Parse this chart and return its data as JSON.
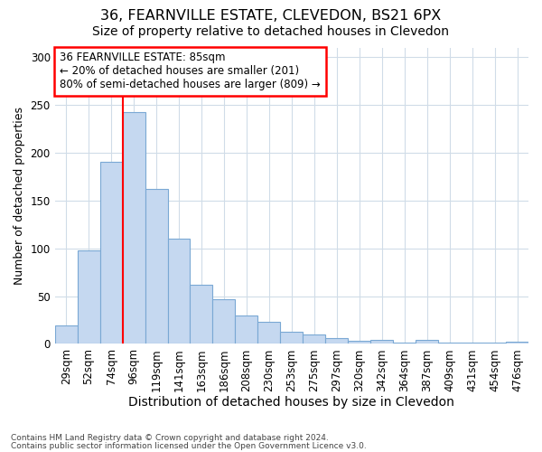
{
  "title": "36, FEARNVILLE ESTATE, CLEVEDON, BS21 6PX",
  "subtitle": "Size of property relative to detached houses in Clevedon",
  "xlabel": "Distribution of detached houses by size in Clevedon",
  "ylabel": "Number of detached properties",
  "categories": [
    "29sqm",
    "52sqm",
    "74sqm",
    "96sqm",
    "119sqm",
    "141sqm",
    "163sqm",
    "186sqm",
    "208sqm",
    "230sqm",
    "253sqm",
    "275sqm",
    "297sqm",
    "320sqm",
    "342sqm",
    "364sqm",
    "387sqm",
    "409sqm",
    "431sqm",
    "454sqm",
    "476sqm"
  ],
  "values": [
    19,
    98,
    190,
    242,
    162,
    110,
    62,
    47,
    30,
    23,
    13,
    10,
    6,
    3,
    4,
    1,
    4,
    1,
    1,
    1,
    2
  ],
  "bar_color": "#c5d8f0",
  "bar_edge_color": "#7aa8d4",
  "red_line_x": 3.0,
  "annotation_text": "36 FEARNVILLE ESTATE: 85sqm\n← 20% of detached houses are smaller (201)\n80% of semi-detached houses are larger (809) →",
  "annotation_box_color": "white",
  "annotation_box_edge_color": "red",
  "red_line_color": "red",
  "ylim": [
    0,
    310
  ],
  "yticks": [
    0,
    50,
    100,
    150,
    200,
    250,
    300
  ],
  "footer_line1": "Contains HM Land Registry data © Crown copyright and database right 2024.",
  "footer_line2": "Contains public sector information licensed under the Open Government Licence v3.0.",
  "title_fontsize": 11.5,
  "subtitle_fontsize": 10,
  "tick_fontsize": 8.5,
  "ylabel_fontsize": 9,
  "xlabel_fontsize": 10,
  "annotation_fontsize": 8.5,
  "footer_fontsize": 6.5,
  "background_color": "#ffffff",
  "plot_background_color": "#ffffff",
  "grid_color": "#d0dce8"
}
